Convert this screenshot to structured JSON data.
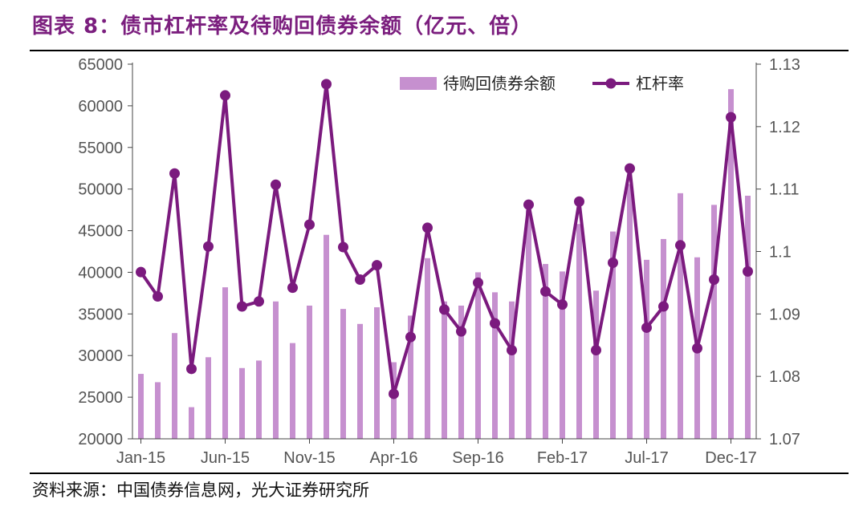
{
  "header": {
    "title": "图表 8：债市杠杆率及待购回债券余额（亿元、倍）"
  },
  "footer": {
    "source": "资料来源：中国债券信息网，光大证券研究所"
  },
  "colors": {
    "bar": "#c690cf",
    "line": "#7b1a7e",
    "title": "#7b1e7e",
    "axis": "#444444"
  },
  "chart_data": {
    "type": "bar+line",
    "categories": [
      "Jan-15",
      "Feb-15",
      "Mar-15",
      "Apr-15",
      "May-15",
      "Jun-15",
      "Jul-15",
      "Aug-15",
      "Sep-15",
      "Oct-15",
      "Nov-15",
      "Dec-15",
      "Jan-16",
      "Feb-16",
      "Mar-16",
      "Apr-16",
      "May-16",
      "Jun-16",
      "Jul-16",
      "Aug-16",
      "Sep-16",
      "Oct-16",
      "Nov-16",
      "Dec-16",
      "Jan-17",
      "Feb-17",
      "Mar-17",
      "Apr-17",
      "May-17",
      "Jun-17",
      "Jul-17",
      "Aug-17",
      "Sep-17",
      "Oct-17",
      "Nov-17",
      "Dec-17",
      "Jan-18"
    ],
    "x_tick_labels": [
      "Jan-15",
      "Jun-15",
      "Nov-15",
      "Apr-16",
      "Sep-16",
      "Feb-17",
      "Jul-17",
      "Dec-17"
    ],
    "series": [
      {
        "name": "待购回债券余额",
        "type": "bar",
        "axis": "left",
        "values": [
          27800,
          26800,
          32700,
          23800,
          29800,
          38200,
          28500,
          29400,
          36500,
          31500,
          36000,
          44500,
          35600,
          33800,
          35800,
          29200,
          34800,
          41700,
          36500,
          36000,
          40000,
          37600,
          36500,
          47500,
          41000,
          40100,
          45800,
          37800,
          44900,
          50600,
          41500,
          44000,
          49500,
          41800,
          48100,
          62000,
          49200
        ]
      },
      {
        "name": "杠杆率",
        "type": "line",
        "axis": "right",
        "values": [
          1.0967,
          1.0928,
          1.1125,
          1.0812,
          1.1008,
          1.125,
          1.0912,
          1.092,
          1.1107,
          1.0942,
          1.1043,
          1.1268,
          1.1007,
          1.0955,
          1.0978,
          1.0772,
          1.0863,
          1.1038,
          1.0907,
          1.0872,
          1.095,
          1.0885,
          1.0842,
          1.1075,
          1.0936,
          1.0915,
          1.108,
          1.0842,
          1.0982,
          1.1133,
          1.0878,
          1.0912,
          1.101,
          1.0845,
          1.0955,
          1.1215,
          1.0968
        ]
      }
    ],
    "y_left": {
      "min": 20000,
      "max": 65000,
      "ticks": [
        20000,
        25000,
        30000,
        35000,
        40000,
        45000,
        50000,
        55000,
        60000,
        65000
      ]
    },
    "y_right": {
      "min": 1.07,
      "max": 1.13,
      "ticks": [
        1.07,
        1.08,
        1.09,
        1.1,
        1.11,
        1.12,
        1.13
      ],
      "tick_labels": [
        "1.07",
        "1.08",
        "1.09",
        "1.1",
        "1.11",
        "1.12",
        "1.13"
      ]
    },
    "legend": {
      "placement": "top-right",
      "entries": [
        "待购回债券余额",
        "杠杆率"
      ]
    },
    "grid": false
  }
}
